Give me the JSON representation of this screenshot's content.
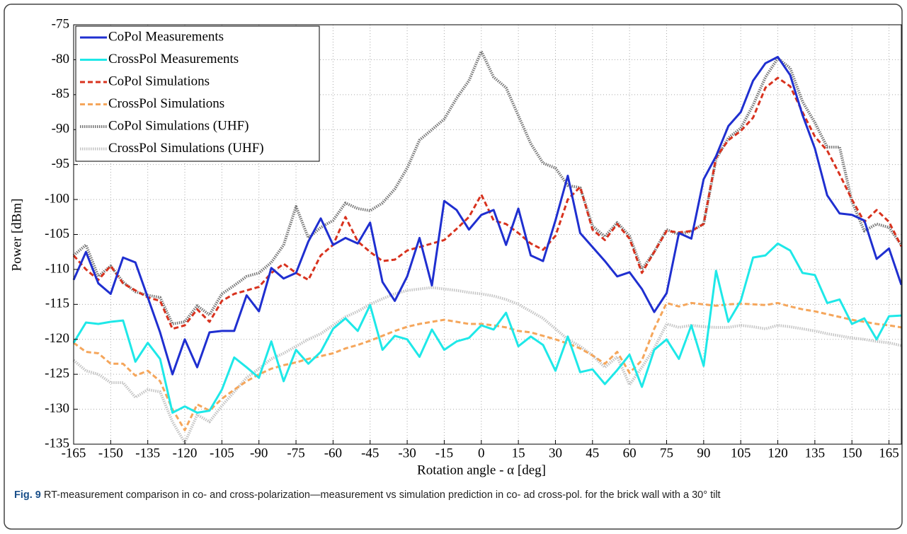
{
  "chart_data": {
    "type": "line",
    "xlabel": "Rotation angle - α [deg]",
    "ylabel": "Power [dBm]",
    "xlim": [
      -165,
      170
    ],
    "ylim": [
      -135,
      -75
    ],
    "xticks": [
      -165,
      -150,
      -135,
      -120,
      -105,
      -90,
      -75,
      -60,
      -45,
      -30,
      -15,
      0,
      15,
      30,
      45,
      60,
      75,
      90,
      105,
      120,
      135,
      150,
      165
    ],
    "yticks": [
      -135,
      -130,
      -125,
      -120,
      -115,
      -110,
      -105,
      -100,
      -95,
      -90,
      -85,
      -80,
      -75
    ],
    "grid": true,
    "legend": "upper left",
    "x": [
      -165,
      -160,
      -155,
      -150,
      -145,
      -140,
      -135,
      -130,
      -125,
      -120,
      -115,
      -110,
      -105,
      -100,
      -95,
      -90,
      -85,
      -80,
      -75,
      -70,
      -65,
      -60,
      -55,
      -50,
      -45,
      -40,
      -35,
      -30,
      -25,
      -20,
      -15,
      -10,
      -5,
      0,
      5,
      10,
      15,
      20,
      25,
      30,
      35,
      40,
      45,
      50,
      55,
      60,
      65,
      70,
      75,
      80,
      85,
      90,
      95,
      100,
      105,
      110,
      115,
      120,
      125,
      130,
      135,
      140,
      145,
      150,
      155,
      160,
      165,
      170
    ],
    "series": [
      {
        "name": "CoPol Measurements",
        "color": "#1f2fd0",
        "style": "solid",
        "values": [
          -111.5,
          -107.5,
          -112,
          -113.5,
          -108.3,
          -109,
          -114,
          -119,
          -125,
          -120,
          -124,
          -119,
          -118.8,
          -118.8,
          -113.7,
          -116,
          -109.8,
          -111.3,
          -110.5,
          -106,
          -102.7,
          -106.5,
          -105.5,
          -106.3,
          -103.3,
          -111.8,
          -114.5,
          -111,
          -105.5,
          -112.3,
          -100.2,
          -101.5,
          -104.3,
          -102.2,
          -101.5,
          -106.5,
          -101.3,
          -108,
          -108.8,
          -103,
          -96.6,
          -104.8,
          -106.8,
          -108.8,
          -111,
          -110.4,
          -112.8,
          -116.1,
          -113.4,
          -104.8,
          -105.6,
          -97.1,
          -93.8,
          -89.5,
          -87.5,
          -83,
          -80.5,
          -79.6,
          -82.2,
          -87.9,
          -92.7,
          -99.4,
          -102,
          -102.2,
          -103,
          -108.5,
          -107,
          -112.2
        ]
      },
      {
        "name": "CrossPol Measurements",
        "color": "#1ee8e8",
        "style": "solid",
        "values": [
          -120.5,
          -117.6,
          -117.8,
          -117.5,
          -117.3,
          -123.2,
          -120.5,
          -122.8,
          -130.5,
          -129.6,
          -130.5,
          -130.2,
          -127.2,
          -122.6,
          -124,
          -125.5,
          -120.3,
          -126,
          -121.5,
          -123.5,
          -121.8,
          -118.5,
          -117,
          -118.8,
          -115.1,
          -121.5,
          -119.5,
          -120,
          -122.5,
          -118.6,
          -121.5,
          -120.3,
          -119.8,
          -118,
          -118.6,
          -116.2,
          -121,
          -119.6,
          -120.8,
          -124.5,
          -119.6,
          -124.7,
          -124.3,
          -126.4,
          -124.4,
          -122.2,
          -126.8,
          -121.5,
          -120,
          -122.8,
          -118,
          -123.8,
          -110.2,
          -117.5,
          -114.5,
          -108.3,
          -108,
          -106.3,
          -107.3,
          -110.5,
          -110.8,
          -114.8,
          -114.3,
          -117.8,
          -117,
          -120,
          -116.7,
          -116.6
        ]
      },
      {
        "name": "CoPol Simulations",
        "color": "#d8321e",
        "style": "dashed",
        "values": [
          -108,
          -110,
          -111.5,
          -109.5,
          -112,
          -113,
          -114,
          -114.5,
          -118.5,
          -118,
          -115.7,
          -117.5,
          -114.5,
          -113.5,
          -113,
          -112.5,
          -110.5,
          -109.2,
          -110.5,
          -111.5,
          -108,
          -106.5,
          -102.5,
          -106,
          -107.5,
          -108.8,
          -108.6,
          -107.3,
          -106.8,
          -106.3,
          -105.8,
          -104.2,
          -102.5,
          -99.3,
          -103,
          -103.5,
          -104.8,
          -106.3,
          -107.2,
          -105.2,
          -100,
          -98.2,
          -104.3,
          -105.8,
          -103.5,
          -105.6,
          -110.5,
          -107.5,
          -104.5,
          -104.7,
          -104.5,
          -103.5,
          -94,
          -91.5,
          -90.2,
          -88.3,
          -84,
          -82.6,
          -83.8,
          -87.5,
          -91,
          -93,
          -96.4,
          -100,
          -103.2,
          -101.5,
          -103.2,
          -106.7
        ]
      },
      {
        "name": "CrossPol Simulations",
        "color": "#f5a65b",
        "style": "dashed",
        "values": [
          -120.5,
          -121.8,
          -122,
          -123.5,
          -123.5,
          -125.2,
          -124.5,
          -126,
          -130,
          -133,
          -129.3,
          -130.2,
          -128.5,
          -127.2,
          -126,
          -125,
          -124.2,
          -123.7,
          -123.3,
          -122.8,
          -122.4,
          -122,
          -121.3,
          -120.8,
          -120.2,
          -119.5,
          -118.8,
          -118.2,
          -117.8,
          -117.5,
          -117.2,
          -117.5,
          -117.8,
          -117.8,
          -118,
          -118.3,
          -118.8,
          -119,
          -119.5,
          -120,
          -120.6,
          -121.3,
          -122.3,
          -123.5,
          -121.8,
          -124.8,
          -123,
          -118.5,
          -114.8,
          -115.3,
          -114.8,
          -115,
          -115.2,
          -115,
          -114.9,
          -115,
          -115.1,
          -114.8,
          -115.3,
          -115.7,
          -116,
          -116.4,
          -116.8,
          -117.2,
          -117.5,
          -117.8,
          -118,
          -118.3
        ]
      },
      {
        "name": "CoPol Simulations (UHF)",
        "color": "#777777",
        "style": "dotted",
        "values": [
          -108,
          -106.5,
          -111,
          -109.5,
          -111.8,
          -113.2,
          -113.7,
          -114,
          -117.8,
          -117.5,
          -115.2,
          -116.5,
          -113.5,
          -112.3,
          -111,
          -110.5,
          -109,
          -106.5,
          -101,
          -105.5,
          -104,
          -103,
          -100.5,
          -101.3,
          -101.6,
          -100.5,
          -98.5,
          -95.5,
          -91.5,
          -90,
          -88.5,
          -85.5,
          -83,
          -78.8,
          -82.5,
          -84,
          -88,
          -92,
          -94.8,
          -95.5,
          -98,
          -98.3,
          -103.8,
          -105.3,
          -103.3,
          -105.2,
          -110,
          -107.5,
          -104.3,
          -105,
          -104.5,
          -103.5,
          -94.2,
          -91.2,
          -89.8,
          -86.5,
          -82.5,
          -79.8,
          -81.2,
          -86,
          -89,
          -92.5,
          -92.5,
          -100.3,
          -104.5,
          -103.5,
          -104,
          -106.5
        ]
      },
      {
        "name": "CrossPol Simulations (UHF)",
        "color": "#c4c4c4",
        "style": "dotted",
        "values": [
          -123,
          -124.5,
          -125,
          -126.2,
          -126.2,
          -128.3,
          -127.2,
          -127.5,
          -131.8,
          -134.8,
          -130.8,
          -131.8,
          -129.5,
          -127.5,
          -125.5,
          -124.2,
          -122.8,
          -122,
          -121,
          -120,
          -119.2,
          -118,
          -116.8,
          -116,
          -115,
          -114.2,
          -113.5,
          -113,
          -112.8,
          -112.6,
          -112.8,
          -113,
          -113.3,
          -113.5,
          -113.8,
          -114.3,
          -115,
          -116,
          -117,
          -118.5,
          -120,
          -121,
          -122.3,
          -124,
          -122.5,
          -126.5,
          -124,
          -121.3,
          -117.8,
          -118.3,
          -118,
          -118.2,
          -118.3,
          -118.3,
          -118,
          -118.2,
          -118.5,
          -118,
          -118.2,
          -118.5,
          -118.8,
          -119.2,
          -119.5,
          -119.8,
          -120,
          -120.3,
          -120.5,
          -120.9
        ]
      }
    ]
  },
  "caption": {
    "label": "Fig. 9",
    "text": "RT-measurement comparison in co- and cross-polarization—measurement vs simulation prediction in co- ad cross-pol. for the brick wall with a 30° tilt"
  }
}
